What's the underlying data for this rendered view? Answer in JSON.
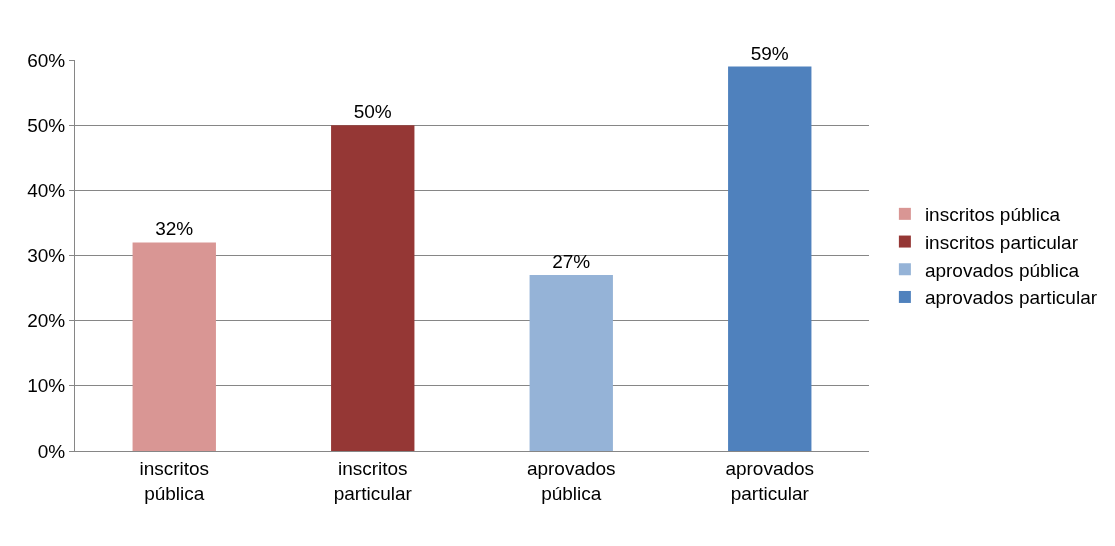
{
  "chart_data": {
    "type": "bar",
    "categories": [
      "inscritos pública",
      "inscritos particular",
      "aprovados pública",
      "aprovados particular"
    ],
    "series": [
      {
        "name": "inscritos pública",
        "color": "#d99694",
        "values": [
          32,
          null,
          null,
          null
        ],
        "value_labels": [
          "32%",
          null,
          null,
          null
        ]
      },
      {
        "name": "inscritos particular",
        "color": "#953735",
        "values": [
          null,
          50,
          null,
          null
        ],
        "value_labels": [
          null,
          "50%",
          null,
          null
        ]
      },
      {
        "name": "aprovados pública",
        "color": "#95b3d7",
        "values": [
          null,
          null,
          27,
          null
        ],
        "value_labels": [
          null,
          null,
          "27%",
          null
        ]
      },
      {
        "name": "aprovados particular",
        "color": "#4f81bd",
        "values": [
          null,
          null,
          null,
          59
        ],
        "value_labels": [
          null,
          null,
          null,
          "59%"
        ]
      }
    ],
    "ylim": [
      0,
      60
    ],
    "yticks": [
      {
        "value": 0,
        "label": "0%"
      },
      {
        "value": 10,
        "label": "10%"
      },
      {
        "value": 20,
        "label": "20%"
      },
      {
        "value": 30,
        "label": "30%"
      },
      {
        "value": 40,
        "label": "40%"
      },
      {
        "value": 50,
        "label": "50%"
      },
      {
        "value": 60,
        "label": "60%"
      }
    ],
    "grid": "y",
    "legend": "right"
  }
}
